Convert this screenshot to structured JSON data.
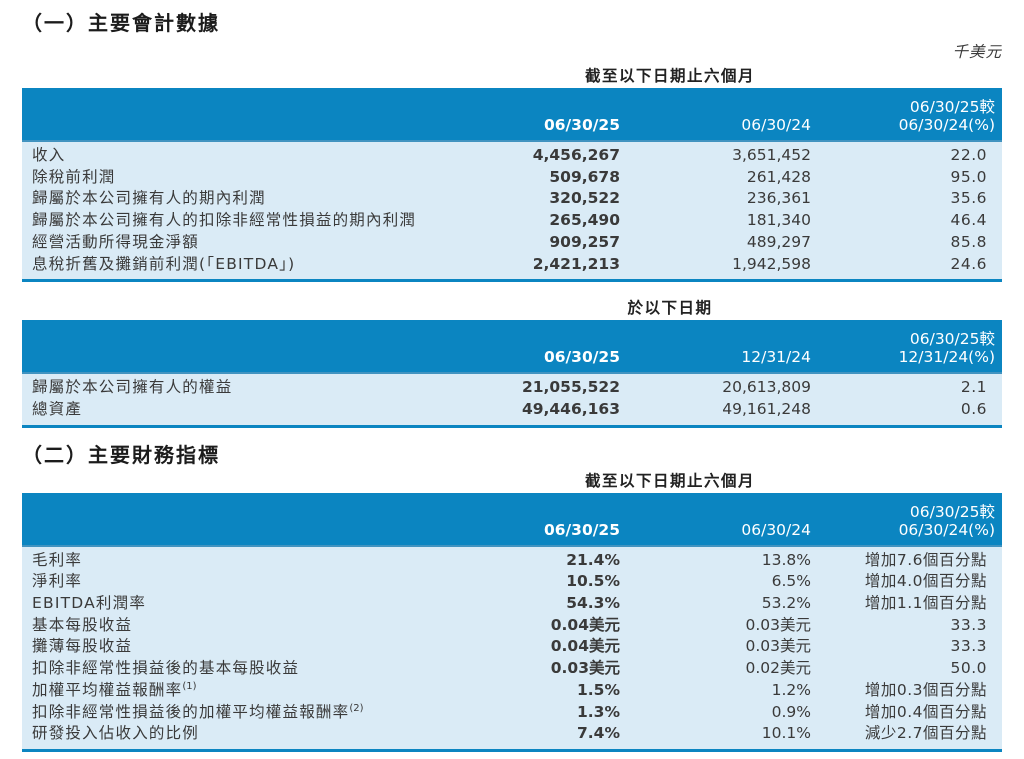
{
  "page": {
    "section1_title": "（一）主要會計數據",
    "section2_title": "（二）主要財務指標",
    "unit_label": "千美元"
  },
  "colors": {
    "header_blue": "#0b85c1",
    "row_background": "#daebf6",
    "accent_value_blue": "#1180be",
    "body_text": "#3a3a3a"
  },
  "tables": [
    {
      "caption": "截至以下日期止六個月",
      "headers": {
        "c1": "06/30/25",
        "c2": "06/30/24",
        "c3_line1": "06/30/25較",
        "c3_line2": "06/30/24(%)"
      },
      "rows": [
        {
          "label": "收入",
          "v1": "4,456,267",
          "v2": "3,651,452",
          "chg": "22.0"
        },
        {
          "label": "除稅前利潤",
          "v1": "509,678",
          "v2": "261,428",
          "chg": "95.0"
        },
        {
          "label": "歸屬於本公司擁有人的期內利潤",
          "v1": "320,522",
          "v2": "236,361",
          "chg": "35.6"
        },
        {
          "label": "歸屬於本公司擁有人的扣除非經常性損益的期內利潤",
          "v1": "265,490",
          "v2": "181,340",
          "chg": "46.4"
        },
        {
          "label": "經營活動所得現金淨額",
          "v1": "909,257",
          "v2": "489,297",
          "chg": "85.8"
        },
        {
          "label": "息稅折舊及攤銷前利潤(「EBITDA」)",
          "v1": "2,421,213",
          "v2": "1,942,598",
          "chg": "24.6"
        }
      ]
    },
    {
      "caption": "於以下日期",
      "headers": {
        "c1": "06/30/25",
        "c2": "12/31/24",
        "c3_line1": "06/30/25較",
        "c3_line2": "12/31/24(%)"
      },
      "rows": [
        {
          "label": "歸屬於本公司擁有人的權益",
          "v1": "21,055,522",
          "v2": "20,613,809",
          "chg": "2.1"
        },
        {
          "label": "總資產",
          "v1": "49,446,163",
          "v2": "49,161,248",
          "chg": "0.6"
        }
      ]
    },
    {
      "caption": "截至以下日期止六個月",
      "headers": {
        "c1": "06/30/25",
        "c2": "06/30/24",
        "c3_line1": "06/30/25較",
        "c3_line2": "06/30/24(%)"
      },
      "rows": [
        {
          "label": "毛利率",
          "v1": "21.4%",
          "v2": "13.8%",
          "chg": "增加7.6個百分點"
        },
        {
          "label": "淨利率",
          "v1": "10.5%",
          "v2": "6.5%",
          "chg": "增加4.0個百分點"
        },
        {
          "label": "EBITDA利潤率",
          "v1": "54.3%",
          "v2": "53.2%",
          "chg": "增加1.1個百分點"
        },
        {
          "label": "基本每股收益",
          "v1": "0.04美元",
          "v2": "0.03美元",
          "chg": "33.3"
        },
        {
          "label": "攤薄每股收益",
          "v1": "0.04美元",
          "v2": "0.03美元",
          "chg": "33.3"
        },
        {
          "label": "扣除非經常性損益後的基本每股收益",
          "v1": "0.03美元",
          "v2": "0.02美元",
          "chg": "50.0"
        },
        {
          "label": "加權平均權益報酬率",
          "sup": "(1)",
          "v1": "1.5%",
          "v2": "1.2%",
          "chg": "增加0.3個百分點"
        },
        {
          "label": "扣除非經常性損益後的加權平均權益報酬率",
          "sup": "(2)",
          "v1": "1.3%",
          "v2": "0.9%",
          "chg": "增加0.4個百分點"
        },
        {
          "label": "研發投入佔收入的比例",
          "v1": "7.4%",
          "v2": "10.1%",
          "chg": "減少2.7個百分點"
        }
      ]
    }
  ]
}
